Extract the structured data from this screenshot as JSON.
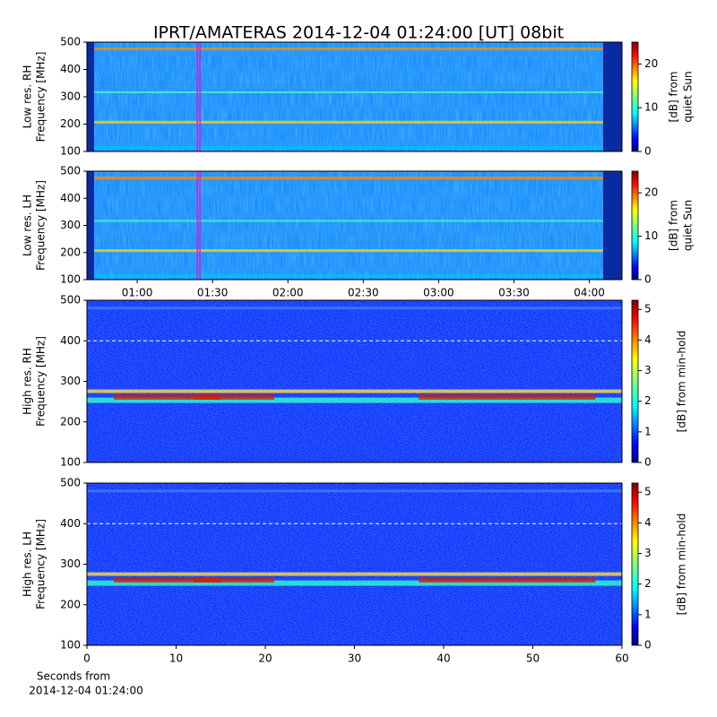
{
  "chart_data": [
    {
      "type": "heatmap",
      "title": "IPRT/AMATERAS 2014-12-04 01:24:00 [UT]   08bit",
      "ylabel": [
        "Low res. RH",
        "Frequency [MHz]"
      ],
      "ylim": [
        100,
        500
      ],
      "yticks": [
        100,
        200,
        300,
        400,
        500
      ],
      "xlim": [
        40,
        253
      ],
      "markers": [
        84,
        85
      ],
      "marker_color": "#d020d0",
      "colorbar_label": [
        "[dB] from",
        "quiet Sun"
      ],
      "clim": [
        0,
        25
      ],
      "cticks": [
        0,
        10,
        20
      ]
    },
    {
      "type": "heatmap",
      "ylabel": [
        "Low res. LH",
        "Frequency [MHz]"
      ],
      "ylim": [
        100,
        500
      ],
      "yticks": [
        100,
        200,
        300,
        400,
        500
      ],
      "xlim": [
        40,
        253
      ],
      "markers": [
        84,
        85
      ],
      "marker_color": "#d020d0",
      "xticks": [
        {
          "value": 60,
          "label": "01:00"
        },
        {
          "value": 90,
          "label": "01:30"
        },
        {
          "value": 120,
          "label": "02:00"
        },
        {
          "value": 150,
          "label": "02:30"
        },
        {
          "value": 180,
          "label": "03:00"
        },
        {
          "value": 210,
          "label": "03:30"
        },
        {
          "value": 240,
          "label": "04:00"
        }
      ],
      "colorbar_label": [
        "[dB] from",
        "quiet Sun"
      ],
      "clim": [
        0,
        25
      ],
      "cticks": [
        0,
        10,
        20
      ]
    },
    {
      "type": "heatmap",
      "ylabel": [
        "High res. RH",
        "Frequency [MHz]"
      ],
      "ylim": [
        100,
        500
      ],
      "yticks": [
        100,
        200,
        300,
        400,
        500
      ],
      "xlim": [
        0,
        60
      ],
      "hline": 400,
      "colorbar_label": [
        "[dB] from min-hold"
      ],
      "clim": [
        0,
        5.3
      ],
      "cticks": [
        0,
        1,
        2,
        3,
        4,
        5
      ]
    },
    {
      "type": "heatmap",
      "ylabel": [
        "High res. LH",
        "Frequency [MHz]"
      ],
      "ylim": [
        100,
        500
      ],
      "yticks": [
        100,
        200,
        300,
        400,
        500
      ],
      "xlim": [
        0,
        60
      ],
      "hline": 400,
      "xticks": [
        0,
        10,
        20,
        30,
        40,
        50,
        60
      ],
      "xlabel": [
        "Seconds from",
        "2014-12-04 01:24:00"
      ],
      "colorbar_label": [
        "[dB] from min-hold"
      ],
      "clim": [
        0,
        5.3
      ],
      "cticks": [
        0,
        1,
        2,
        3,
        4,
        5
      ]
    }
  ]
}
